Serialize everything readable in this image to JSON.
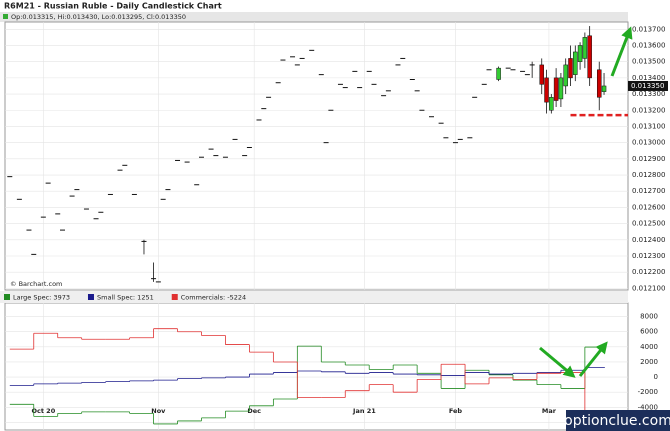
{
  "chart_data": [
    {
      "type": "candlestick",
      "title": "R6M21 - Russian Ruble - Daily Candlestick Chart",
      "subtitle": "Op:0.013315, Hi:0.013430, Lo:0.013295, Cl:0.013350",
      "source": "© Barchart.com",
      "last_label": "0.013350",
      "up_color": "#33cc33",
      "down_color": "#cc0000",
      "grid": true,
      "xlim": [
        0,
        130
      ],
      "ylim": [
        0.01209,
        0.013745
      ],
      "yticks": [
        {
          "value": 0.0121,
          "label": "0.012100"
        },
        {
          "value": 0.0122,
          "label": "0.012200"
        },
        {
          "value": 0.0123,
          "label": "0.012300"
        },
        {
          "value": 0.0124,
          "label": "0.012400"
        },
        {
          "value": 0.0125,
          "label": "0.012500"
        },
        {
          "value": 0.0126,
          "label": "0.012600"
        },
        {
          "value": 0.0127,
          "label": "0.012700"
        },
        {
          "value": 0.0128,
          "label": "0.012800"
        },
        {
          "value": 0.0129,
          "label": "0.012900"
        },
        {
          "value": 0.013,
          "label": "0.013000"
        },
        {
          "value": 0.0131,
          "label": "0.013100"
        },
        {
          "value": 0.0132,
          "label": "0.013200"
        },
        {
          "value": 0.0133,
          "label": "0.013300"
        },
        {
          "value": 0.0134,
          "label": "0.013400"
        },
        {
          "value": 0.0135,
          "label": "0.013500"
        },
        {
          "value": 0.0136,
          "label": "0.013600"
        },
        {
          "value": 0.0137,
          "label": "0.013700"
        }
      ],
      "support_line": {
        "x": 118,
        "value": 0.01317,
        "color": "#e02020"
      },
      "candles": [
        {
          "x": 1,
          "open": 0.01279,
          "high": 0.01279,
          "low": 0.01279,
          "close": 0.01279
        },
        {
          "x": 3,
          "open": 0.01265,
          "high": 0.01265,
          "low": 0.01265,
          "close": 0.01265
        },
        {
          "x": 5,
          "open": 0.01246,
          "high": 0.01246,
          "low": 0.01246,
          "close": 0.01246
        },
        {
          "x": 6,
          "open": 0.01231,
          "high": 0.01231,
          "low": 0.01231,
          "close": 0.01231
        },
        {
          "x": 8,
          "open": 0.01254,
          "high": 0.01254,
          "low": 0.01254,
          "close": 0.01254
        },
        {
          "x": 9,
          "open": 0.01275,
          "high": 0.01275,
          "low": 0.01275,
          "close": 0.01275
        },
        {
          "x": 11,
          "open": 0.01256,
          "high": 0.01256,
          "low": 0.01256,
          "close": 0.01256
        },
        {
          "x": 12,
          "open": 0.01246,
          "high": 0.01246,
          "low": 0.01246,
          "close": 0.01246
        },
        {
          "x": 14,
          "open": 0.01267,
          "high": 0.01267,
          "low": 0.01267,
          "close": 0.01267
        },
        {
          "x": 15,
          "open": 0.01271,
          "high": 0.01271,
          "low": 0.01271,
          "close": 0.01271
        },
        {
          "x": 17,
          "open": 0.01259,
          "high": 0.01259,
          "low": 0.01259,
          "close": 0.01259
        },
        {
          "x": 19,
          "open": 0.01253,
          "high": 0.01253,
          "low": 0.01253,
          "close": 0.01253
        },
        {
          "x": 20,
          "open": 0.01257,
          "high": 0.01257,
          "low": 0.01257,
          "close": 0.01257
        },
        {
          "x": 22,
          "open": 0.01268,
          "high": 0.01268,
          "low": 0.01268,
          "close": 0.01268
        },
        {
          "x": 24,
          "open": 0.01283,
          "high": 0.01283,
          "low": 0.01283,
          "close": 0.01283
        },
        {
          "x": 25,
          "open": 0.01286,
          "high": 0.01286,
          "low": 0.01286,
          "close": 0.01286
        },
        {
          "x": 27,
          "open": 0.01268,
          "high": 0.01268,
          "low": 0.01268,
          "close": 0.01268
        },
        {
          "x": 29,
          "open": 0.01239,
          "high": 0.0124,
          "low": 0.01231,
          "close": 0.01239
        },
        {
          "x": 31,
          "open": 0.01216,
          "high": 0.01226,
          "low": 0.01214,
          "close": 0.01216
        },
        {
          "x": 32,
          "open": 0.01214,
          "high": 0.01214,
          "low": 0.01214,
          "close": 0.01214
        },
        {
          "x": 33,
          "open": 0.01265,
          "high": 0.01265,
          "low": 0.01265,
          "close": 0.01265
        },
        {
          "x": 34,
          "open": 0.01271,
          "high": 0.01271,
          "low": 0.01271,
          "close": 0.01271
        },
        {
          "x": 36,
          "open": 0.01289,
          "high": 0.01289,
          "low": 0.01289,
          "close": 0.01289
        },
        {
          "x": 38,
          "open": 0.01288,
          "high": 0.01288,
          "low": 0.01288,
          "close": 0.01288
        },
        {
          "x": 40,
          "open": 0.01274,
          "high": 0.01274,
          "low": 0.01274,
          "close": 0.01274
        },
        {
          "x": 41,
          "open": 0.01291,
          "high": 0.01291,
          "low": 0.01291,
          "close": 0.01291
        },
        {
          "x": 43,
          "open": 0.01296,
          "high": 0.01296,
          "low": 0.01296,
          "close": 0.01296
        },
        {
          "x": 44,
          "open": 0.01292,
          "high": 0.01292,
          "low": 0.01292,
          "close": 0.01292
        },
        {
          "x": 46,
          "open": 0.01291,
          "high": 0.01291,
          "low": 0.01291,
          "close": 0.01291
        },
        {
          "x": 48,
          "open": 0.01302,
          "high": 0.01302,
          "low": 0.01302,
          "close": 0.01302
        },
        {
          "x": 50,
          "open": 0.01292,
          "high": 0.01292,
          "low": 0.01292,
          "close": 0.01292
        },
        {
          "x": 51,
          "open": 0.01297,
          "high": 0.01297,
          "low": 0.01297,
          "close": 0.01297
        },
        {
          "x": 53,
          "open": 0.01314,
          "high": 0.01314,
          "low": 0.01314,
          "close": 0.01314
        },
        {
          "x": 54,
          "open": 0.01321,
          "high": 0.01321,
          "low": 0.01321,
          "close": 0.01321
        },
        {
          "x": 55,
          "open": 0.01328,
          "high": 0.01328,
          "low": 0.01328,
          "close": 0.01328
        },
        {
          "x": 57,
          "open": 0.01337,
          "high": 0.01337,
          "low": 0.01337,
          "close": 0.01337
        },
        {
          "x": 58,
          "open": 0.01351,
          "high": 0.01351,
          "low": 0.01351,
          "close": 0.01351
        },
        {
          "x": 60,
          "open": 0.01353,
          "high": 0.01353,
          "low": 0.01353,
          "close": 0.01353
        },
        {
          "x": 61,
          "open": 0.01348,
          "high": 0.01348,
          "low": 0.01348,
          "close": 0.01348
        },
        {
          "x": 62,
          "open": 0.01352,
          "high": 0.01352,
          "low": 0.01352,
          "close": 0.01352
        },
        {
          "x": 64,
          "open": 0.01357,
          "high": 0.01357,
          "low": 0.01357,
          "close": 0.01357
        },
        {
          "x": 66,
          "open": 0.01342,
          "high": 0.01342,
          "low": 0.01342,
          "close": 0.01342
        },
        {
          "x": 67,
          "open": 0.013,
          "high": 0.013,
          "low": 0.013,
          "close": 0.013
        },
        {
          "x": 68,
          "open": 0.0132,
          "high": 0.0132,
          "low": 0.0132,
          "close": 0.0132
        },
        {
          "x": 70,
          "open": 0.01336,
          "high": 0.01336,
          "low": 0.01336,
          "close": 0.01336
        },
        {
          "x": 71,
          "open": 0.01334,
          "high": 0.01334,
          "low": 0.01334,
          "close": 0.01334
        },
        {
          "x": 73,
          "open": 0.01344,
          "high": 0.01344,
          "low": 0.01344,
          "close": 0.01344
        },
        {
          "x": 74,
          "open": 0.01334,
          "high": 0.01334,
          "low": 0.01334,
          "close": 0.01334
        },
        {
          "x": 76,
          "open": 0.01344,
          "high": 0.01344,
          "low": 0.01344,
          "close": 0.01344
        },
        {
          "x": 77,
          "open": 0.01336,
          "high": 0.01336,
          "low": 0.01336,
          "close": 0.01336
        },
        {
          "x": 79,
          "open": 0.01329,
          "high": 0.01329,
          "low": 0.01329,
          "close": 0.01329
        },
        {
          "x": 80,
          "open": 0.01332,
          "high": 0.01332,
          "low": 0.01332,
          "close": 0.01332
        },
        {
          "x": 82,
          "open": 0.01348,
          "high": 0.01348,
          "low": 0.01348,
          "close": 0.01348
        },
        {
          "x": 83,
          "open": 0.01352,
          "high": 0.01352,
          "low": 0.01352,
          "close": 0.01352
        },
        {
          "x": 85,
          "open": 0.01339,
          "high": 0.01339,
          "low": 0.01339,
          "close": 0.01339
        },
        {
          "x": 86,
          "open": 0.01332,
          "high": 0.01332,
          "low": 0.01332,
          "close": 0.01332
        },
        {
          "x": 87,
          "open": 0.0132,
          "high": 0.0132,
          "low": 0.0132,
          "close": 0.0132
        },
        {
          "x": 89,
          "open": 0.01316,
          "high": 0.01316,
          "low": 0.01316,
          "close": 0.01316
        },
        {
          "x": 91,
          "open": 0.01312,
          "high": 0.01312,
          "low": 0.01312,
          "close": 0.01312
        },
        {
          "x": 92,
          "open": 0.01303,
          "high": 0.01303,
          "low": 0.01303,
          "close": 0.01303
        },
        {
          "x": 94,
          "open": 0.013,
          "high": 0.013,
          "low": 0.013,
          "close": 0.013
        },
        {
          "x": 95,
          "open": 0.01302,
          "high": 0.01302,
          "low": 0.01302,
          "close": 0.01302
        },
        {
          "x": 97,
          "open": 0.01303,
          "high": 0.01303,
          "low": 0.01303,
          "close": 0.01303
        },
        {
          "x": 98,
          "open": 0.01328,
          "high": 0.01328,
          "low": 0.01328,
          "close": 0.01328
        },
        {
          "x": 100,
          "open": 0.01336,
          "high": 0.01336,
          "low": 0.01336,
          "close": 0.01336
        },
        {
          "x": 101,
          "open": 0.01345,
          "high": 0.01345,
          "low": 0.01345,
          "close": 0.01345
        },
        {
          "x": 103,
          "open": 0.01339,
          "high": 0.01347,
          "low": 0.01338,
          "close": 0.01346
        },
        {
          "x": 105,
          "open": 0.01346,
          "high": 0.01346,
          "low": 0.01346,
          "close": 0.01346
        },
        {
          "x": 106,
          "open": 0.01345,
          "high": 0.01345,
          "low": 0.01345,
          "close": 0.01345
        },
        {
          "x": 108,
          "open": 0.01344,
          "high": 0.01344,
          "low": 0.01344,
          "close": 0.01344
        },
        {
          "x": 109,
          "open": 0.01342,
          "high": 0.01342,
          "low": 0.01342,
          "close": 0.01342
        },
        {
          "x": 110,
          "open": 0.01348,
          "high": 0.0135,
          "low": 0.0134,
          "close": 0.01348
        },
        {
          "x": 112,
          "open": 0.01348,
          "high": 0.01352,
          "low": 0.0133,
          "close": 0.01336
        },
        {
          "x": 113,
          "open": 0.0134,
          "high": 0.01345,
          "low": 0.01318,
          "close": 0.01325
        },
        {
          "x": 114,
          "open": 0.0132,
          "high": 0.0133,
          "low": 0.01318,
          "close": 0.01328
        },
        {
          "x": 115,
          "open": 0.0134,
          "high": 0.01346,
          "low": 0.01322,
          "close": 0.01326
        },
        {
          "x": 116,
          "open": 0.01327,
          "high": 0.01343,
          "low": 0.01322,
          "close": 0.0134
        },
        {
          "x": 117,
          "open": 0.01335,
          "high": 0.01352,
          "low": 0.0133,
          "close": 0.01348
        },
        {
          "x": 118,
          "open": 0.01352,
          "high": 0.0136,
          "low": 0.01335,
          "close": 0.0134
        },
        {
          "x": 119,
          "open": 0.01342,
          "high": 0.0136,
          "low": 0.01338,
          "close": 0.01356
        },
        {
          "x": 120,
          "open": 0.0135,
          "high": 0.01362,
          "low": 0.01345,
          "close": 0.0136
        },
        {
          "x": 121,
          "open": 0.01352,
          "high": 0.01368,
          "low": 0.01346,
          "close": 0.01365
        },
        {
          "x": 122,
          "open": 0.01366,
          "high": 0.01372,
          "low": 0.01335,
          "close": 0.0134
        },
        {
          "x": 124,
          "open": 0.01345,
          "high": 0.0135,
          "low": 0.0132,
          "close": 0.01328
        },
        {
          "x": 125,
          "open": 0.013315,
          "high": 0.01343,
          "low": 0.013295,
          "close": 0.01335
        }
      ]
    },
    {
      "type": "step",
      "grid": true,
      "xlim": [
        0,
        130
      ],
      "ylim": [
        -7000,
        9800
      ],
      "yticks": [
        8000,
        6000,
        4000,
        2000,
        0,
        -2000,
        -4000,
        -6000
      ],
      "xticks": [
        {
          "value": 8,
          "label": "Oct 20"
        },
        {
          "value": 32,
          "label": "Nov"
        },
        {
          "value": 52,
          "label": "Dec"
        },
        {
          "value": 75,
          "label": "Jan 21"
        },
        {
          "value": 94,
          "label": "Feb"
        },
        {
          "value": 113.5,
          "label": "Mar"
        }
      ],
      "x": [
        1,
        6,
        11,
        16,
        21,
        26,
        31,
        36,
        41,
        46,
        51,
        56,
        61,
        66,
        71,
        76,
        81,
        86,
        91,
        96,
        101,
        106,
        111,
        116,
        121
      ],
      "series": [
        {
          "name": "Large Spec: 3973",
          "color": "#228b22",
          "values": [
            -3600,
            -5200,
            -4800,
            -4600,
            -4600,
            -4800,
            -6200,
            -5800,
            -5400,
            -4500,
            -3800,
            -2900,
            4100,
            2000,
            1600,
            1000,
            1600,
            500,
            -1500,
            900,
            300,
            -400,
            -1000,
            -1500,
            3973
          ]
        },
        {
          "name": "Small Spec: 1251",
          "color": "#1a1a8c",
          "values": [
            -1100,
            -900,
            -800,
            -700,
            -600,
            -500,
            -400,
            -200,
            -100,
            0,
            400,
            600,
            800,
            700,
            500,
            600,
            400,
            300,
            200,
            600,
            400,
            500,
            600,
            900,
            1251
          ]
        },
        {
          "name": "Commercials: -5224",
          "color": "#e03030",
          "values": [
            3700,
            5800,
            5200,
            5000,
            5000,
            5200,
            6400,
            6000,
            5500,
            4300,
            3300,
            2000,
            -2700,
            -2700,
            -1800,
            -1000,
            -2000,
            -300,
            1700,
            -900,
            -100,
            -300,
            500,
            600,
            -5224
          ]
        }
      ]
    }
  ],
  "watermark": "optionclue.com"
}
